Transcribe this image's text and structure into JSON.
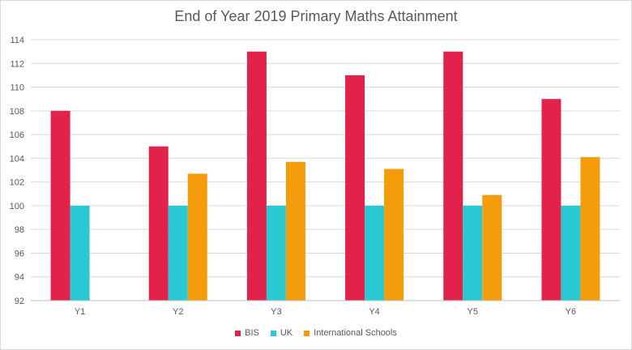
{
  "chart_data": {
    "type": "bar",
    "title": "End of Year 2019 Primary Maths Attainment",
    "categories": [
      "Y1",
      "Y2",
      "Y3",
      "Y4",
      "Y5",
      "Y6"
    ],
    "series": [
      {
        "name": "BIS",
        "color": "#e3224b",
        "values": [
          108,
          105,
          113,
          111,
          113,
          109
        ]
      },
      {
        "name": "UK",
        "color": "#29c9d3",
        "values": [
          100,
          100,
          100,
          100,
          100,
          100
        ]
      },
      {
        "name": "International Schools",
        "color": "#f59c0c",
        "values": [
          null,
          102.7,
          103.7,
          103.1,
          100.9,
          104.1
        ]
      }
    ],
    "ylim": [
      92,
      114
    ],
    "yticks": [
      92,
      94,
      96,
      98,
      100,
      102,
      104,
      106,
      108,
      110,
      112,
      114
    ],
    "grid": true,
    "legend_position": "bottom"
  }
}
